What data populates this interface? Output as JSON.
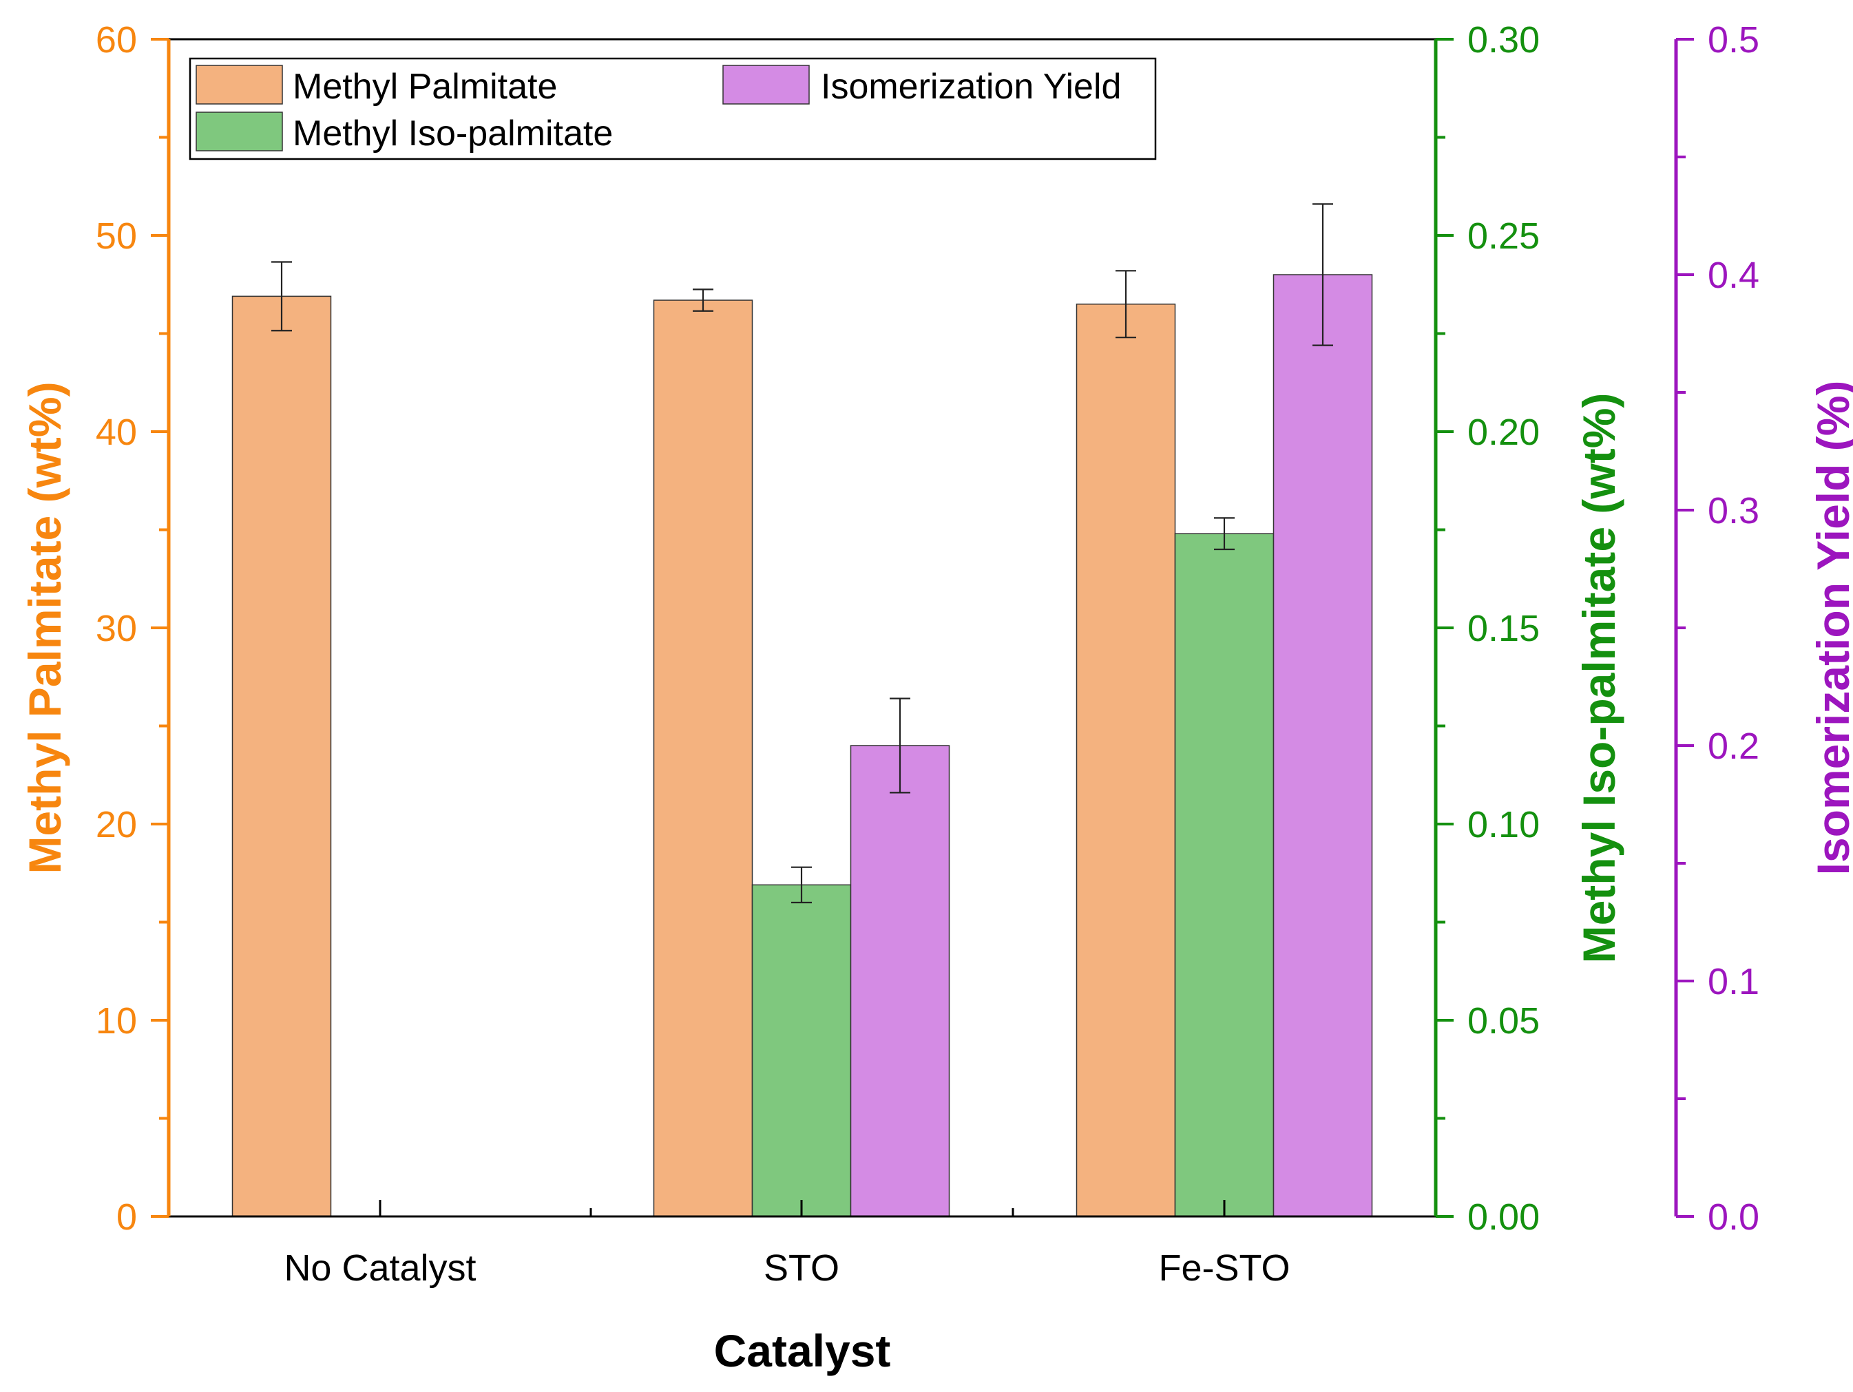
{
  "colors": {
    "left_axis": "#F7860F",
    "mid_axis": "#14900F",
    "right_axis": "#9C15BE",
    "bar_palmitate": "#F4B27F",
    "bar_isopalmitate": "#7FC87E",
    "bar_yield": "#D48BE4",
    "frame": "#000000"
  },
  "chart_data": {
    "type": "bar",
    "xlabel": "Catalyst",
    "categories": [
      "No Catalyst",
      "STO",
      "Fe-STO"
    ],
    "axes": {
      "left": {
        "label": "Methyl Palmitate (wt%)",
        "ylim": [
          0,
          60
        ],
        "ticks": [
          0,
          10,
          20,
          30,
          40,
          50,
          60
        ],
        "tick_labels": [
          "0",
          "10",
          "20",
          "30",
          "40",
          "50",
          "60"
        ]
      },
      "mid": {
        "label": "Methyl Iso-palmitate (wt%)",
        "ylim": [
          0,
          0.3
        ],
        "ticks": [
          0,
          0.05,
          0.1,
          0.15,
          0.2,
          0.25,
          0.3
        ],
        "tick_labels": [
          "0.00",
          "0.05",
          "0.10",
          "0.15",
          "0.20",
          "0.25",
          "0.30"
        ]
      },
      "right": {
        "label": "Isomerization Yield (%)",
        "ylim": [
          0,
          0.5
        ],
        "ticks": [
          0,
          0.1,
          0.2,
          0.3,
          0.4,
          0.5
        ],
        "tick_labels": [
          "0.0",
          "0.1",
          "0.2",
          "0.3",
          "0.4",
          "0.5"
        ]
      }
    },
    "series": [
      {
        "name": "Methyl Palmitate",
        "axis": "left",
        "values": [
          46.9,
          46.7,
          46.5
        ],
        "errors": [
          1.75,
          0.55,
          1.7
        ]
      },
      {
        "name": "Methyl Iso-palmitate",
        "axis": "mid",
        "values": [
          null,
          0.0845,
          0.174
        ],
        "errors": [
          null,
          0.0045,
          0.004
        ]
      },
      {
        "name": "Isomerization Yield",
        "axis": "right",
        "values": [
          null,
          0.2,
          0.4
        ],
        "errors": [
          null,
          0.02,
          0.03
        ]
      }
    ],
    "legend": {
      "position": "top-left",
      "entries": [
        "Methyl Palmitate",
        "Isomerization Yield",
        "Methyl Iso-palmitate"
      ]
    }
  }
}
